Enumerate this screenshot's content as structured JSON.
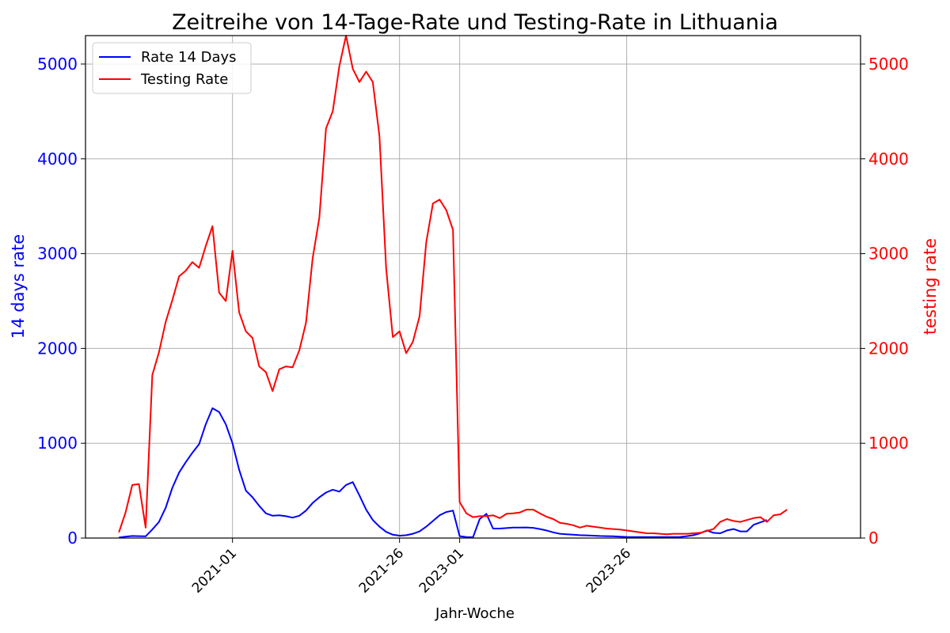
{
  "chart_data": {
    "type": "line",
    "title": "Zeitreihe von 14-Tage-Rate und Testing-Rate in Lithuania",
    "xlabel": "Jahr-Woche",
    "ylabel_left": "14 days rate",
    "ylabel_right": "testing rate",
    "ylim": [
      0,
      5300
    ],
    "yticks": [
      0,
      1000,
      2000,
      3000,
      4000,
      5000
    ],
    "xlim": [
      -5,
      111
    ],
    "xticks": [
      {
        "x": 17,
        "label": "2021-01"
      },
      {
        "x": 42,
        "label": "2021-26"
      },
      {
        "x": 51,
        "label": "2023-01"
      },
      {
        "x": 76,
        "label": "2023-26"
      }
    ],
    "grid": true,
    "legend_position": "top-left",
    "colors": {
      "rate": "#0000ff",
      "testing": "#ff0000",
      "grid": "#b0b0b0"
    },
    "series": [
      {
        "name": "Rate 14 Days",
        "axis": "left",
        "color": "#0000ff",
        "values": [
          5,
          15,
          22,
          20,
          18,
          90,
          170,
          320,
          530,
          690,
          800,
          900,
          990,
          1200,
          1370,
          1330,
          1200,
          1000,
          720,
          500,
          430,
          340,
          260,
          235,
          240,
          230,
          215,
          235,
          290,
          370,
          430,
          480,
          510,
          490,
          560,
          590,
          450,
          300,
          190,
          120,
          65,
          35,
          25,
          30,
          45,
          70,
          120,
          180,
          240,
          275,
          290,
          20,
          10,
          8,
          200,
          255,
          100,
          100,
          105,
          110,
          110,
          112,
          108,
          95,
          80,
          60,
          45,
          40,
          35,
          30,
          28,
          25,
          22,
          20,
          18,
          15,
          12,
          10,
          10,
          10,
          10,
          10,
          10,
          10,
          12,
          20,
          30,
          50,
          80,
          55,
          50,
          80,
          95,
          70,
          70,
          140,
          165,
          190
        ]
      },
      {
        "name": "Testing Rate",
        "axis": "right",
        "color": "#ff0000",
        "values": [
          60,
          270,
          560,
          570,
          110,
          1720,
          1960,
          2280,
          2510,
          2760,
          2820,
          2910,
          2850,
          3080,
          3290,
          2590,
          2500,
          3030,
          2380,
          2180,
          2110,
          1810,
          1750,
          1550,
          1780,
          1810,
          1800,
          1980,
          2270,
          2950,
          3380,
          4320,
          4500,
          4980,
          5300,
          4950,
          4810,
          4920,
          4810,
          4240,
          2840,
          2120,
          2180,
          1950,
          2070,
          2340,
          3120,
          3530,
          3570,
          3460,
          3250,
          380,
          260,
          220,
          230,
          230,
          240,
          210,
          255,
          260,
          270,
          300,
          300,
          260,
          225,
          200,
          160,
          150,
          135,
          110,
          130,
          120,
          110,
          100,
          95,
          90,
          80,
          70,
          60,
          50,
          50,
          45,
          40,
          45,
          45,
          45,
          50,
          55,
          75,
          95,
          170,
          200,
          180,
          170,
          190,
          210,
          220,
          170,
          240,
          250,
          300
        ]
      }
    ]
  }
}
